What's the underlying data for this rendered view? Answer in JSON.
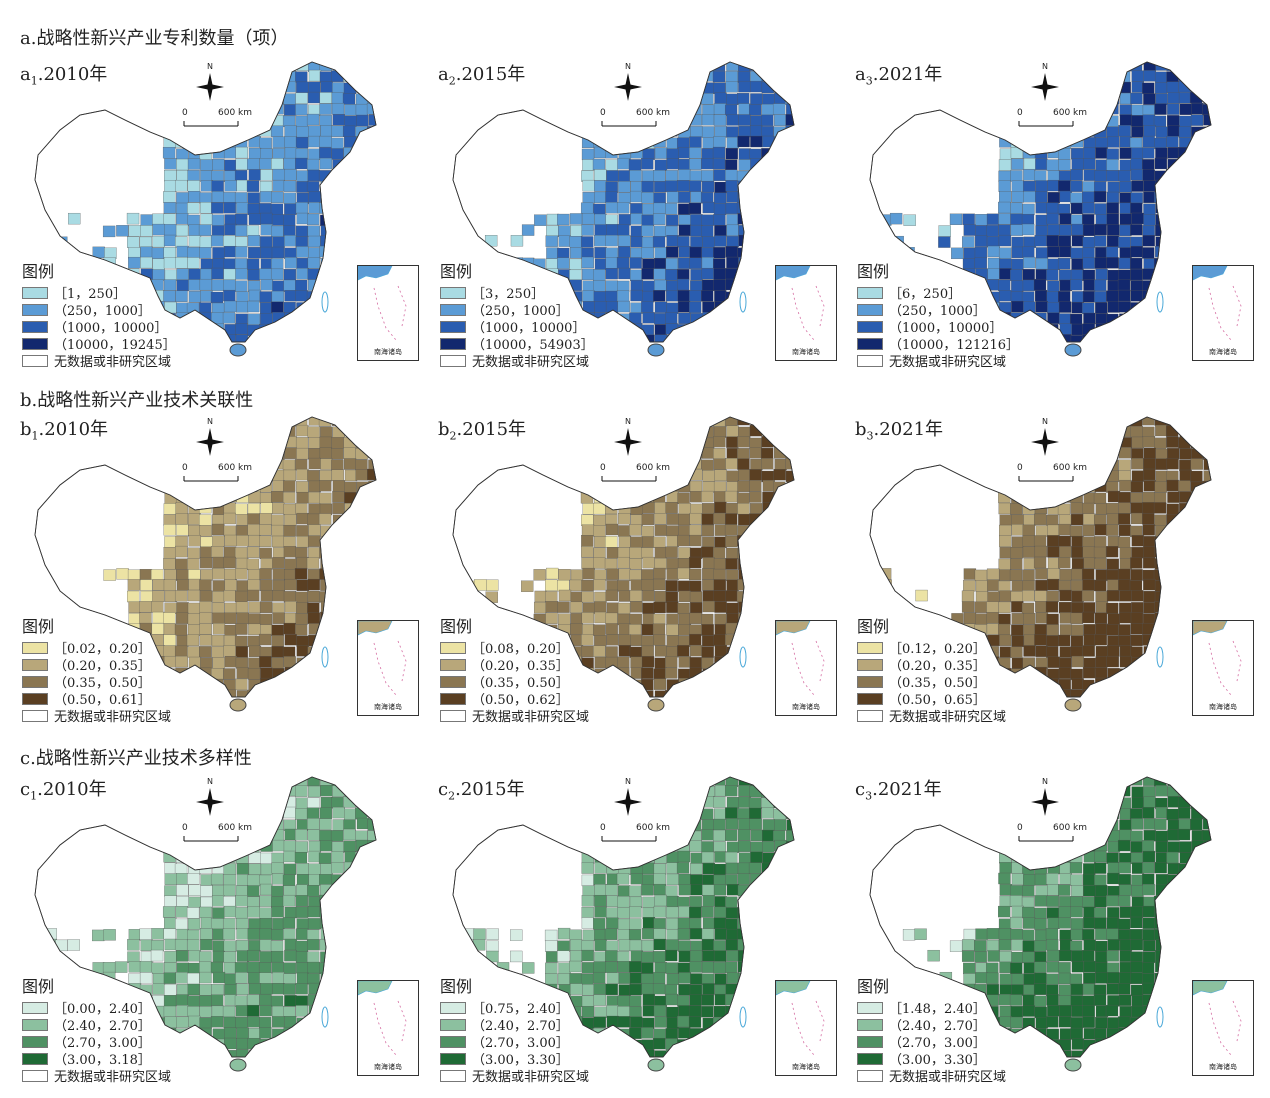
{
  "sections": [
    {
      "title": "a.战略性新兴产业专利数量（项）"
    },
    {
      "title": "b.战略性新兴产业技术关联性"
    },
    {
      "title": "c.战略性新兴产业技术多样性"
    }
  ],
  "common": {
    "north": "N",
    "scale_zero": "0",
    "scale_dist": "600 km",
    "legend_title": "图例",
    "nodata_label": "无数据或非研究区域",
    "inset_label": "南海诸岛"
  },
  "panels": [
    {
      "letter": "a",
      "sub": "1",
      "year": ".2010年",
      "palette": "blue",
      "intensity": 0.3,
      "legend": [
        "［1，250］",
        "（250，1000］",
        "（1000，10000］",
        "（10000，19245］"
      ]
    },
    {
      "letter": "a",
      "sub": "2",
      "year": ".2015年",
      "palette": "blue",
      "intensity": 0.45,
      "legend": [
        "［3，250］",
        "（250，1000］",
        "（1000，10000］",
        "（10000，54903］"
      ]
    },
    {
      "letter": "a",
      "sub": "3",
      "year": ".2021年",
      "palette": "blue",
      "intensity": 0.65,
      "legend": [
        "［6，250］",
        "（250，1000］",
        "（1000，10000］",
        "（10000，121216］"
      ]
    },
    {
      "letter": "b",
      "sub": "1",
      "year": ".2010年",
      "palette": "brown",
      "intensity": 0.4,
      "legend": [
        "［0.02，0.20］",
        "（0.20，0.35］",
        "（0.35，0.50］",
        "（0.50，0.61］"
      ]
    },
    {
      "letter": "b",
      "sub": "2",
      "year": ".2015年",
      "palette": "brown",
      "intensity": 0.55,
      "legend": [
        "［0.08，0.20］",
        "（0.20，0.35］",
        "（0.35，0.50］",
        "（0.50，0.62］"
      ]
    },
    {
      "letter": "b",
      "sub": "3",
      "year": ".2021年",
      "palette": "brown",
      "intensity": 0.75,
      "legend": [
        "［0.12，0.20］",
        "（0.20，0.35］",
        "（0.35，0.50］",
        "（0.50，0.65］"
      ]
    },
    {
      "letter": "c",
      "sub": "1",
      "year": ".2010年",
      "palette": "green",
      "intensity": 0.35,
      "legend": [
        "［0.00，2.40］",
        "（2.40，2.70］",
        "（2.70，3.00］",
        "（3.00，3.18］"
      ]
    },
    {
      "letter": "c",
      "sub": "2",
      "year": ".2015年",
      "palette": "green",
      "intensity": 0.55,
      "legend": [
        "［0.75，2.40］",
        "（2.40，2.70］",
        "（2.70，3.00］",
        "（3.00，3.30］"
      ]
    },
    {
      "letter": "c",
      "sub": "3",
      "year": ".2021年",
      "palette": "green",
      "intensity": 0.8,
      "legend": [
        "［1.48，2.40］",
        "（2.40，2.70］",
        "（2.70，3.00］",
        "（3.00，3.30］"
      ]
    }
  ],
  "palettes": {
    "blue": [
      "#a9dbe3",
      "#5b9bd5",
      "#2a5db0",
      "#12286e"
    ],
    "brown": [
      "#ece3a4",
      "#b8a77a",
      "#8a7652",
      "#5a3f22"
    ],
    "green": [
      "#d6ece3",
      "#8cc09f",
      "#4f9163",
      "#1f6a35"
    ]
  }
}
